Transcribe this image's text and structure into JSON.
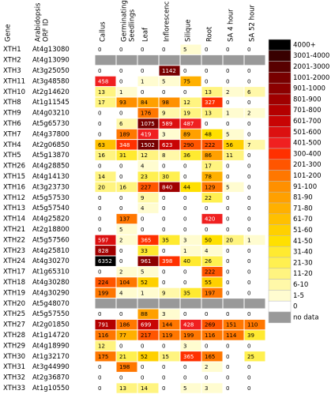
{
  "table": {
    "columns": [
      {
        "lines": [
          "Gene"
        ]
      },
      {
        "lines": [
          "Arabidopsis",
          "ORF ID"
        ]
      },
      {
        "lines": [
          "Callus"
        ]
      },
      {
        "lines": [
          "Germinating",
          "Seedlings"
        ]
      },
      {
        "lines": [
          "Leaf"
        ]
      },
      {
        "lines": [
          "Inflorescenc"
        ]
      },
      {
        "lines": [
          "Silique"
        ]
      },
      {
        "lines": [
          "Root"
        ]
      },
      {
        "lines": [
          "SA 4 hour"
        ]
      },
      {
        "lines": [
          "SA 52 hour"
        ]
      }
    ],
    "rows": [
      {
        "gene": "XTH1",
        "orf": "At4g13080",
        "values": [
          0,
          0,
          0,
          0,
          5,
          0,
          0,
          0
        ]
      },
      {
        "gene": "XTH2",
        "orf": "At4g13090",
        "values": [
          null,
          null,
          null,
          null,
          null,
          null,
          null,
          null
        ]
      },
      {
        "gene": "XTH3",
        "orf": "At3g25050",
        "values": [
          0,
          0,
          0,
          1142,
          0,
          0,
          0,
          0
        ]
      },
      {
        "gene": "XTH11",
        "orf": "At3g48580",
        "values": [
          458,
          0,
          1,
          5,
          75,
          0,
          0,
          0
        ]
      },
      {
        "gene": "XTH10",
        "orf": "At2g14620",
        "values": [
          13,
          1,
          0,
          0,
          0,
          13,
          2,
          6
        ]
      },
      {
        "gene": "XTH8",
        "orf": "At1g11545",
        "values": [
          17,
          93,
          84,
          98,
          12,
          327,
          0,
          0
        ]
      },
      {
        "gene": "XTH9",
        "orf": "At4g03210",
        "values": [
          0,
          0,
          176,
          9,
          19,
          13,
          1,
          2
        ]
      },
      {
        "gene": "XTH6",
        "orf": "At5g65730",
        "values": [
          0,
          6,
          1075,
          589,
          487,
          0,
          0,
          0
        ]
      },
      {
        "gene": "XTH7",
        "orf": "At4g37800",
        "values": [
          0,
          189,
          419,
          3,
          89,
          48,
          5,
          0
        ]
      },
      {
        "gene": "XTH4",
        "orf": "At2g06850",
        "values": [
          63,
          348,
          1502,
          623,
          290,
          222,
          56,
          7
        ]
      },
      {
        "gene": "XTH5",
        "orf": "At5g13870",
        "values": [
          16,
          31,
          12,
          8,
          36,
          86,
          11,
          0
        ]
      },
      {
        "gene": "XTH26",
        "orf": "At4g28850",
        "values": [
          0,
          0,
          4,
          0,
          0,
          17,
          0,
          0
        ]
      },
      {
        "gene": "XTH15",
        "orf": "At4g14130",
        "values": [
          14,
          0,
          23,
          30,
          0,
          78,
          0,
          0
        ]
      },
      {
        "gene": "XTH16",
        "orf": "At3g23730",
        "values": [
          20,
          16,
          227,
          840,
          44,
          129,
          5,
          0
        ]
      },
      {
        "gene": "XTH12",
        "orf": "At5g57530",
        "values": [
          0,
          0,
          9,
          0,
          0,
          22,
          0,
          0
        ]
      },
      {
        "gene": "XTH13",
        "orf": "At5g57540",
        "values": [
          0,
          0,
          4,
          0,
          0,
          0,
          0,
          0
        ]
      },
      {
        "gene": "XTH14",
        "orf": "At4g25820",
        "values": [
          0,
          137,
          0,
          0,
          0,
          420,
          0,
          0
        ]
      },
      {
        "gene": "XTH21",
        "orf": "At2g18800",
        "values": [
          0,
          5,
          0,
          0,
          0,
          0,
          0,
          0
        ]
      },
      {
        "gene": "XTH22",
        "orf": "At5g57560",
        "values": [
          597,
          2,
          365,
          35,
          3,
          50,
          20,
          1
        ]
      },
      {
        "gene": "XTH23",
        "orf": "At4g25810",
        "values": [
          828,
          0,
          33,
          0,
          1,
          4,
          0,
          0
        ]
      },
      {
        "gene": "XTH24",
        "orf": "At4g30270",
        "values": [
          6352,
          0,
          961,
          398,
          40,
          26,
          0,
          0
        ]
      },
      {
        "gene": "XTH17",
        "orf": "At1g65310",
        "values": [
          0,
          2,
          5,
          0,
          0,
          222,
          0,
          0
        ]
      },
      {
        "gene": "XTH18",
        "orf": "At4g30280",
        "values": [
          224,
          104,
          52,
          0,
          0,
          55,
          0,
          0
        ]
      },
      {
        "gene": "XTH19",
        "orf": "At4g30290",
        "values": [
          199,
          4,
          1,
          9,
          35,
          197,
          0,
          0
        ]
      },
      {
        "gene": "XTH20",
        "orf": "At5g48070",
        "values": [
          null,
          null,
          null,
          null,
          null,
          null,
          null,
          null
        ]
      },
      {
        "gene": "XTH25",
        "orf": "At5g57550",
        "values": [
          0,
          0,
          88,
          3,
          0,
          0,
          0,
          0
        ]
      },
      {
        "gene": "XTH27",
        "orf": "At2g01850",
        "values": [
          791,
          186,
          699,
          144,
          428,
          269,
          151,
          110
        ]
      },
      {
        "gene": "XTH28",
        "orf": "At1g14720",
        "values": [
          116,
          77,
          217,
          119,
          199,
          116,
          114,
          39
        ]
      },
      {
        "gene": "XTH29",
        "orf": "At4g18990",
        "values": [
          12,
          0,
          0,
          0,
          3,
          0,
          0,
          0
        ]
      },
      {
        "gene": "XTH30",
        "orf": "At1g32170",
        "values": [
          175,
          21,
          52,
          15,
          365,
          165,
          0,
          25
        ]
      },
      {
        "gene": "XTH31",
        "orf": "At3g44990",
        "values": [
          0,
          198,
          0,
          0,
          0,
          2,
          0,
          0
        ]
      },
      {
        "gene": "XTH32",
        "orf": "At2g36870",
        "values": [
          0,
          0,
          0,
          0,
          0,
          0,
          0,
          0
        ]
      },
      {
        "gene": "XTH33",
        "orf": "At1g10550",
        "values": [
          0,
          13,
          14,
          0,
          5,
          3,
          0,
          0
        ]
      }
    ]
  },
  "legend": [
    {
      "label": "4000+",
      "color": "#000000"
    },
    {
      "label": "3001-4000",
      "color": "#380000"
    },
    {
      "label": "2001-3000",
      "color": "#580000"
    },
    {
      "label": "1001-2000",
      "color": "#780000"
    },
    {
      "label": "901-1000",
      "color": "#8c0000"
    },
    {
      "label": "801-900",
      "color": "#a00000"
    },
    {
      "label": "701-800",
      "color": "#b40000"
    },
    {
      "label": "601-700",
      "color": "#c80404"
    },
    {
      "label": "501-600",
      "color": "#dc1010"
    },
    {
      "label": "401-500",
      "color": "#f02020"
    },
    {
      "label": "300-400",
      "color": "#ff3000"
    },
    {
      "label": "201-300",
      "color": "#ff5500"
    },
    {
      "label": "101-200",
      "color": "#ff7700"
    },
    {
      "label": "91-100",
      "color": "#ff9000"
    },
    {
      "label": "81-90",
      "color": "#ffa000"
    },
    {
      "label": "71-80",
      "color": "#ffb000"
    },
    {
      "label": "61-70",
      "color": "#ffc000"
    },
    {
      "label": "51-60",
      "color": "#ffd000"
    },
    {
      "label": "41-50",
      "color": "#ffe000"
    },
    {
      "label": "31-40",
      "color": "#ffea30"
    },
    {
      "label": "21-30",
      "color": "#fff050"
    },
    {
      "label": "11-20",
      "color": "#fff480"
    },
    {
      "label": "6-10",
      "color": "#fff8a8"
    },
    {
      "label": "1-5",
      "color": "#fffcd0"
    },
    {
      "label": "0",
      "color": "#ffffff"
    },
    {
      "label": "no data",
      "color": "#999999"
    }
  ]
}
